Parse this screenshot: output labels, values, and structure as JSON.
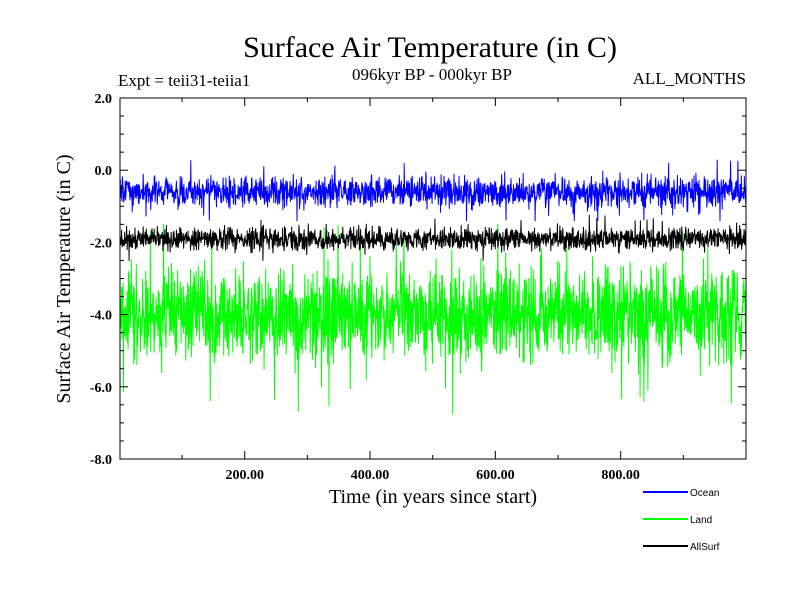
{
  "chart_data": {
    "type": "line",
    "title": "Surface Air Temperature (in C)",
    "subtitle": "096kyr BP - 000kyr BP",
    "left_header": "Expt = teii31-teiia1",
    "right_header": "ALL_MONTHS",
    "xlabel": "Time (in years since start)",
    "ylabel": "Surface Air Temperature (in C)",
    "xlim": [
      1,
      1000
    ],
    "ylim": [
      -8.0,
      2.0
    ],
    "xticks": [
      200,
      400,
      600,
      800
    ],
    "xtick_labels": [
      "200.00",
      "400.00",
      "600.00",
      "800.00"
    ],
    "yticks": [
      2.0,
      0.0,
      -2.0,
      -4.0,
      -6.0,
      -8.0
    ],
    "ytick_labels": [
      "2.0",
      "0.0",
      "-2.0",
      "-4.0",
      "-6.0",
      "-8.0"
    ],
    "grid": false,
    "legend_position": "bottom-right, outside plot",
    "series": [
      {
        "name": "Land",
        "color": "#00ff00",
        "mean": -4.0,
        "min": -6.8,
        "max": -1.5
      },
      {
        "name": "AllSurf",
        "color": "#000000",
        "mean": -1.9,
        "min": -2.5,
        "max": -1.2
      },
      {
        "name": "Ocean",
        "color": "#0000ff",
        "mean": -0.6,
        "min": -1.4,
        "max": 0.5
      }
    ],
    "legend": [
      {
        "name": "Ocean",
        "color": "#0000ff"
      },
      {
        "name": "Land",
        "color": "#00ff00"
      },
      {
        "name": "AllSurf",
        "color": "#000000"
      }
    ]
  }
}
